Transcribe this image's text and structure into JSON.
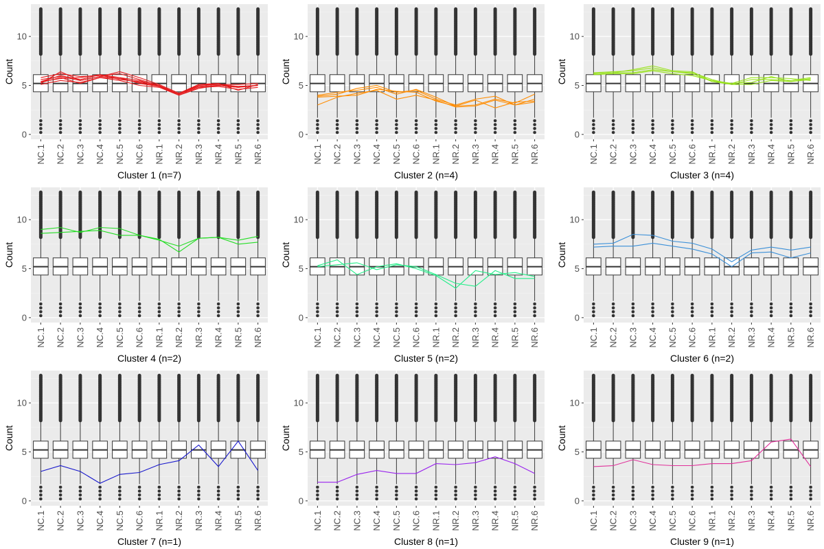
{
  "chart_data": {
    "type": "box",
    "layout": {
      "rows": 3,
      "cols": 3
    },
    "categories": [
      "NC.1",
      "NC.2",
      "NC.3",
      "NC.4",
      "NC.5",
      "NC.6",
      "NR.1",
      "NR.2",
      "NR.3",
      "NR.4",
      "NR.5",
      "NR.6"
    ],
    "ylabel": "Count",
    "ylim": [
      -0.5,
      13.3
    ],
    "yticks": [
      0,
      5,
      10
    ],
    "box": {
      "q1": 4.35,
      "median": 5.2,
      "q3": 6.1,
      "whisker_low": 1.7,
      "whisker_high": 8.2,
      "outlier_low_min": 0.2,
      "outlier_high_max": 12.8
    },
    "panels": [
      {
        "title": "Cluster 1 (n=7)",
        "color": "#e41a1c",
        "series": [
          [
            5.1,
            5.5,
            5.3,
            5.8,
            5.5,
            5.0,
            4.8,
            4.0,
            4.7,
            5.0,
            4.8,
            5.0
          ],
          [
            5.4,
            6.0,
            5.6,
            6.1,
            5.8,
            5.2,
            4.9,
            4.1,
            4.9,
            5.0,
            4.9,
            5.0
          ],
          [
            5.8,
            6.2,
            5.9,
            6.0,
            6.2,
            5.6,
            5.0,
            4.1,
            5.0,
            5.1,
            5.1,
            5.2
          ],
          [
            5.3,
            5.8,
            5.2,
            5.8,
            5.7,
            5.3,
            4.9,
            4.0,
            4.8,
            4.9,
            4.6,
            4.8
          ],
          [
            5.6,
            5.9,
            5.5,
            5.9,
            5.8,
            5.5,
            4.9,
            4.1,
            5.1,
            5.1,
            4.9,
            5.0
          ],
          [
            5.2,
            6.4,
            5.5,
            5.9,
            6.4,
            5.8,
            5.1,
            4.2,
            5.1,
            5.2,
            4.5,
            5.1
          ],
          [
            5.4,
            5.7,
            5.8,
            6.1,
            5.6,
            5.4,
            5.0,
            4.1,
            4.9,
            5.0,
            4.8,
            5.0
          ]
        ]
      },
      {
        "title": "Cluster 2 (n=4)",
        "color": "#ff8c00",
        "series": [
          [
            3.0,
            3.8,
            4.2,
            4.5,
            3.6,
            4.0,
            3.5,
            2.8,
            2.9,
            3.5,
            3.0,
            3.3
          ],
          [
            3.8,
            3.9,
            4.0,
            4.6,
            4.4,
            4.3,
            3.4,
            2.9,
            3.5,
            2.7,
            3.3,
            3.4
          ],
          [
            4.0,
            4.3,
            4.5,
            4.8,
            4.1,
            4.6,
            3.8,
            2.9,
            3.0,
            3.6,
            3.2,
            4.1
          ],
          [
            3.9,
            4.1,
            4.7,
            5.0,
            4.3,
            4.5,
            3.6,
            3.0,
            3.6,
            3.9,
            3.0,
            3.6
          ]
        ]
      },
      {
        "title": "Cluster 3 (n=4)",
        "color": "#98e21c",
        "series": [
          [
            6.3,
            6.4,
            6.5,
            6.8,
            6.4,
            6.3,
            5.6,
            5.1,
            5.6,
            5.6,
            5.5,
            5.8
          ],
          [
            6.2,
            6.3,
            6.6,
            7.0,
            6.5,
            6.4,
            5.4,
            5.2,
            5.3,
            5.9,
            5.4,
            5.6
          ],
          [
            6.1,
            6.2,
            6.2,
            6.5,
            6.2,
            6.0,
            5.5,
            5.2,
            5.8,
            5.8,
            5.7,
            5.5
          ],
          [
            6.2,
            6.3,
            6.3,
            6.6,
            6.4,
            6.2,
            5.4,
            5.1,
            5.1,
            5.5,
            5.4,
            5.7
          ]
        ]
      },
      {
        "title": "Cluster 4 (n=2)",
        "color": "#22dd22",
        "series": [
          [
            9.0,
            9.2,
            8.7,
            9.2,
            9.1,
            8.4,
            7.9,
            7.3,
            8.1,
            8.2,
            7.9,
            8.3
          ],
          [
            8.6,
            8.7,
            8.8,
            8.9,
            8.4,
            8.4,
            8.0,
            6.7,
            8.1,
            8.2,
            7.5,
            7.7
          ]
        ]
      },
      {
        "title": "Cluster 5 (n=2)",
        "color": "#22ee88",
        "series": [
          [
            5.3,
            5.9,
            4.4,
            5.2,
            5.5,
            5.0,
            4.3,
            3.0,
            4.8,
            4.4,
            4.6,
            4.2
          ],
          [
            5.2,
            5.4,
            5.6,
            4.9,
            5.4,
            5.2,
            4.4,
            3.5,
            3.2,
            4.8,
            4.0,
            4.0
          ]
        ]
      },
      {
        "title": "Cluster 6 (n=2)",
        "color": "#3a8fd8",
        "series": [
          [
            7.5,
            7.6,
            8.5,
            8.4,
            7.8,
            7.6,
            7.0,
            5.7,
            6.9,
            7.2,
            6.9,
            7.2
          ],
          [
            7.2,
            7.3,
            7.3,
            7.6,
            7.3,
            7.0,
            6.5,
            5.2,
            6.6,
            6.7,
            6.1,
            6.6
          ]
        ]
      },
      {
        "title": "Cluster 7 (n=1)",
        "color": "#1616cc",
        "series": [
          [
            3.0,
            3.6,
            3.0,
            1.8,
            2.7,
            2.9,
            3.7,
            4.1,
            5.7,
            3.5,
            6.1,
            3.1
          ]
        ]
      },
      {
        "title": "Cluster 8 (n=1)",
        "color": "#9922ee",
        "series": [
          [
            1.9,
            1.9,
            2.7,
            3.1,
            2.8,
            2.8,
            3.8,
            3.7,
            3.9,
            4.5,
            3.8,
            2.8
          ]
        ]
      },
      {
        "title": "Cluster 9 (n=1)",
        "color": "#e0309a",
        "series": [
          [
            3.5,
            3.6,
            4.2,
            3.7,
            3.6,
            3.6,
            3.8,
            3.8,
            4.1,
            6.0,
            6.3,
            3.5
          ]
        ]
      }
    ]
  }
}
